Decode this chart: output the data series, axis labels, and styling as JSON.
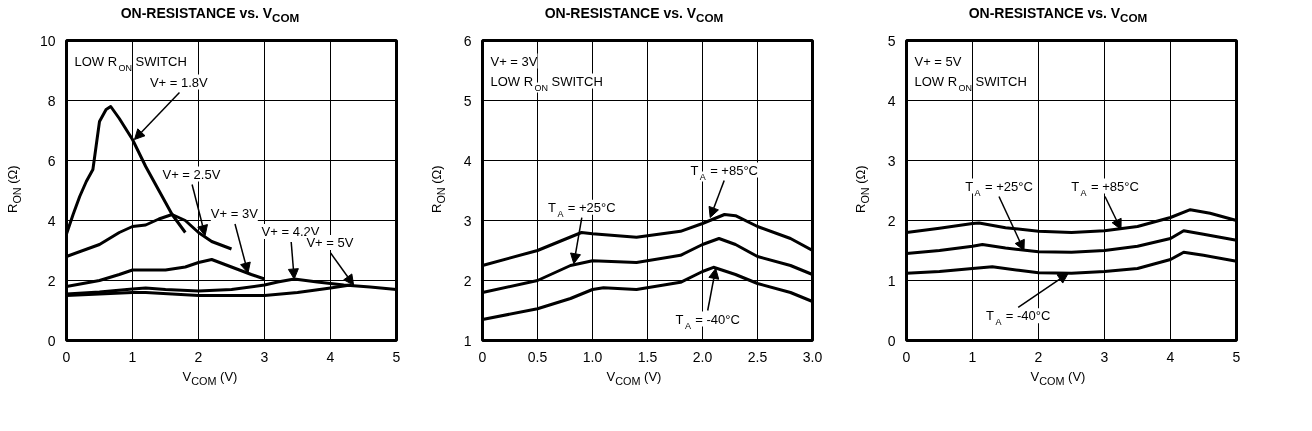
{
  "chart_data": [
    {
      "type": "line",
      "title": "ON-RESISTANCE vs. V$_{COM}$",
      "xlabel": "V$_{COM}$ (V)",
      "ylabel": "R$_{ON}$ (Ω)",
      "xlim": [
        0,
        5
      ],
      "ylim": [
        0,
        10
      ],
      "xticks": [
        0,
        1,
        2,
        3,
        4,
        5
      ],
      "yticks": [
        0,
        2,
        4,
        6,
        8,
        10
      ],
      "grid": true,
      "series": [
        {
          "color": "#000000",
          "x": [
            0,
            0.1,
            0.2,
            0.3,
            0.4,
            0.45,
            0.5,
            0.6,
            0.67,
            0.8,
            1.0,
            1.2,
            1.4,
            1.6,
            1.8
          ],
          "values": [
            3.55,
            4.2,
            4.8,
            5.3,
            5.7,
            6.5,
            7.3,
            7.7,
            7.8,
            7.4,
            6.7,
            5.8,
            5.0,
            4.2,
            3.6
          ]
        },
        {
          "color": "#000000",
          "x": [
            0,
            0.5,
            0.8,
            1.0,
            1.2,
            1.4,
            1.6,
            1.8,
            2.0,
            2.2,
            2.5
          ],
          "values": [
            2.8,
            3.2,
            3.6,
            3.8,
            3.85,
            4.05,
            4.2,
            4.0,
            3.6,
            3.3,
            3.05
          ]
        },
        {
          "color": "#000000",
          "x": [
            0,
            0.5,
            0.8,
            1.0,
            1.5,
            1.8,
            2.0,
            2.2,
            2.5,
            2.8,
            3.0
          ],
          "values": [
            1.8,
            2.0,
            2.2,
            2.35,
            2.35,
            2.45,
            2.6,
            2.7,
            2.45,
            2.2,
            2.05
          ]
        },
        {
          "color": "#000000",
          "x": [
            0,
            0.5,
            1.0,
            1.2,
            1.5,
            2.0,
            2.5,
            3.0,
            3.2,
            3.45,
            3.8,
            4.2,
            4.6,
            5.0
          ],
          "values": [
            1.55,
            1.62,
            1.72,
            1.75,
            1.7,
            1.65,
            1.7,
            1.85,
            1.95,
            2.05,
            1.95,
            1.85,
            1.78,
            1.7
          ]
        },
        {
          "color": "#000000",
          "x": [
            0,
            1.0,
            1.2,
            2.0,
            2.5,
            3.0,
            3.5,
            4.0,
            4.3
          ],
          "values": [
            1.5,
            1.6,
            1.6,
            1.5,
            1.5,
            1.5,
            1.6,
            1.75,
            1.85
          ]
        }
      ],
      "annotations": [
        "LOW R$_{ON}$ SWITCH",
        {
          "text": "V+ = 1.8V",
          "x": 1.03,
          "y": 6.7
        },
        {
          "text": "V+ = 2.5V",
          "x": 2.1,
          "y": 3.5
        },
        {
          "text": "V+ = 3V",
          "x": 2.75,
          "y": 2.25
        },
        {
          "text": "V+ = 4.2V",
          "x": 3.45,
          "y": 2.05
        },
        {
          "text": "V+ = 5V",
          "x": 4.35,
          "y": 1.85
        }
      ]
    },
    {
      "type": "line",
      "title": "ON-RESISTANCE vs. V$_{COM}$",
      "xlabel": "V$_{COM}$ (V)",
      "ylabel": "R$_{ON}$ (Ω)",
      "xlim": [
        0,
        3
      ],
      "ylim": [
        1,
        6
      ],
      "xticks": [
        0,
        0.5,
        {
          "value": 1,
          "label": "1.0"
        },
        1.5,
        {
          "value": 2,
          "label": "2.0"
        },
        2.5,
        {
          "value": 3,
          "label": "3.0"
        }
      ],
      "yticks": [
        1,
        2,
        3,
        4,
        5,
        6
      ],
      "grid": true,
      "series": [
        {
          "color": "#000000",
          "x": [
            0,
            0.5,
            0.9,
            1.0,
            1.4,
            1.8,
            2.0,
            2.2,
            2.3,
            2.5,
            2.8,
            3.0
          ],
          "values": [
            2.25,
            2.5,
            2.8,
            2.78,
            2.72,
            2.82,
            2.95,
            3.1,
            3.08,
            2.9,
            2.7,
            2.5
          ]
        },
        {
          "color": "#000000",
          "x": [
            0,
            0.5,
            0.8,
            1.0,
            1.4,
            1.8,
            2.0,
            2.15,
            2.3,
            2.5,
            2.8,
            3.0
          ],
          "values": [
            1.8,
            2.0,
            2.25,
            2.33,
            2.3,
            2.42,
            2.6,
            2.7,
            2.6,
            2.4,
            2.25,
            2.1
          ]
        },
        {
          "color": "#000000",
          "x": [
            0,
            0.5,
            0.8,
            1.0,
            1.1,
            1.4,
            1.8,
            2.0,
            2.1,
            2.3,
            2.5,
            2.8,
            3.0
          ],
          "values": [
            1.35,
            1.53,
            1.7,
            1.85,
            1.88,
            1.85,
            1.97,
            2.15,
            2.22,
            2.1,
            1.95,
            1.8,
            1.65
          ]
        }
      ],
      "annotations": [
        "V+ = 3V",
        "LOW R$_{ON}$ SWITCH",
        {
          "text": "T$_{A}$ = +85°C",
          "x": 2.07,
          "y": 3.05
        },
        {
          "text": "T$_{A}$ = +25°C",
          "x": 0.83,
          "y": 2.28
        },
        {
          "text": "T$_{A}$ = -40°C",
          "x": 2.12,
          "y": 2.2
        }
      ]
    },
    {
      "type": "line",
      "title": "ON-RESISTANCE vs. V$_{COM}$",
      "xlabel": "V$_{COM}$ (V)",
      "ylabel": "R$_{ON}$ (Ω)",
      "xlim": [
        0,
        5
      ],
      "ylim": [
        0,
        5
      ],
      "xticks": [
        0,
        1,
        2,
        3,
        4,
        5
      ],
      "yticks": [
        0,
        1,
        2,
        3,
        4,
        5
      ],
      "grid": true,
      "series": [
        {
          "color": "#000000",
          "x": [
            0,
            0.5,
            1.0,
            1.1,
            1.5,
            2.0,
            2.5,
            3.0,
            3.5,
            4.0,
            4.3,
            4.6,
            5.0
          ],
          "values": [
            1.8,
            1.87,
            1.95,
            1.96,
            1.88,
            1.82,
            1.8,
            1.83,
            1.9,
            2.05,
            2.18,
            2.12,
            2.0
          ]
        },
        {
          "color": "#000000",
          "x": [
            0,
            0.5,
            1.0,
            1.15,
            1.5,
            2.0,
            2.5,
            3.0,
            3.5,
            4.0,
            4.2,
            4.5,
            5.0
          ],
          "values": [
            1.45,
            1.5,
            1.57,
            1.6,
            1.54,
            1.48,
            1.47,
            1.5,
            1.57,
            1.7,
            1.83,
            1.77,
            1.67
          ]
        },
        {
          "color": "#000000",
          "x": [
            0,
            0.5,
            1.0,
            1.3,
            1.7,
            2.0,
            2.5,
            3.0,
            3.5,
            4.0,
            4.2,
            4.5,
            5.0
          ],
          "values": [
            1.12,
            1.15,
            1.2,
            1.23,
            1.17,
            1.13,
            1.12,
            1.15,
            1.2,
            1.35,
            1.47,
            1.42,
            1.32
          ]
        }
      ],
      "annotations": [
        "V+ = 5V",
        "LOW R$_{ON}$ SWITCH",
        {
          "text": "T$_{A}$ = +85°C",
          "x": 3.25,
          "y": 1.85
        },
        {
          "text": "T$_{A}$ = +25°C",
          "x": 1.78,
          "y": 1.5
        },
        {
          "text": "T$_{A}$ = -40°C",
          "x": 2.45,
          "y": 1.12
        }
      ]
    }
  ]
}
